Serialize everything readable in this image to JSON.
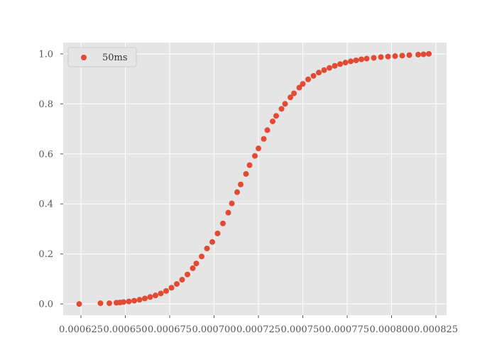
{
  "chart_data": {
    "type": "scatter",
    "title": "",
    "xlabel": "",
    "ylabel": "",
    "xlim": [
      0.000615,
      0.000831
    ],
    "ylim": [
      -0.045,
      1.045
    ],
    "x_ticks": [
      0.000625,
      0.00065,
      0.000675,
      0.0007,
      0.000725,
      0.00075,
      0.000775,
      0.0008,
      0.000825
    ],
    "x_tick_labels": [
      "0.000625",
      "0.000650",
      "0.000675",
      "0.000700",
      "0.000725",
      "0.000750",
      "0.000775",
      "0.000800",
      "0.000825"
    ],
    "y_ticks": [
      0.0,
      0.2,
      0.4,
      0.6,
      0.8,
      1.0
    ],
    "y_tick_labels": [
      "0.0",
      "0.2",
      "0.4",
      "0.6",
      "0.8",
      "1.0"
    ],
    "grid": true,
    "legend_position": "top-left",
    "background_color": "#e5e5e5",
    "grid_color": "#ffffff",
    "series": [
      {
        "name": "50ms",
        "color": "#e24a33",
        "x": [
          0.000624,
          0.000636,
          0.000641,
          0.000645,
          0.000647,
          0.000649,
          0.000652,
          0.000655,
          0.000658,
          0.000661,
          0.000664,
          0.000667,
          0.00067,
          0.000673,
          0.000676,
          0.000679,
          0.000682,
          0.000685,
          0.000688,
          0.00069,
          0.000693,
          0.000696,
          0.000699,
          0.000702,
          0.000705,
          0.000708,
          0.00071,
          0.000713,
          0.000715,
          0.000718,
          0.00072,
          0.000723,
          0.000725,
          0.000728,
          0.00073,
          0.000733,
          0.000735,
          0.000738,
          0.00074,
          0.000743,
          0.000745,
          0.000748,
          0.00075,
          0.000753,
          0.000756,
          0.000759,
          0.000762,
          0.000765,
          0.000768,
          0.000771,
          0.000774,
          0.000777,
          0.00078,
          0.000783,
          0.000786,
          0.00079,
          0.000794,
          0.000798,
          0.000802,
          0.000806,
          0.00081,
          0.000815,
          0.000818,
          0.000821
        ],
        "y": [
          0.0,
          0.003,
          0.003,
          0.005,
          0.006,
          0.008,
          0.01,
          0.013,
          0.017,
          0.022,
          0.028,
          0.034,
          0.042,
          0.052,
          0.065,
          0.08,
          0.097,
          0.118,
          0.143,
          0.162,
          0.19,
          0.222,
          0.248,
          0.282,
          0.322,
          0.365,
          0.402,
          0.447,
          0.478,
          0.52,
          0.555,
          0.592,
          0.622,
          0.66,
          0.695,
          0.73,
          0.752,
          0.78,
          0.8,
          0.826,
          0.842,
          0.865,
          0.88,
          0.898,
          0.912,
          0.925,
          0.935,
          0.944,
          0.952,
          0.959,
          0.965,
          0.97,
          0.974,
          0.978,
          0.981,
          0.984,
          0.987,
          0.989,
          0.991,
          0.993,
          0.995,
          0.997,
          0.998,
          1.0
        ]
      }
    ]
  }
}
